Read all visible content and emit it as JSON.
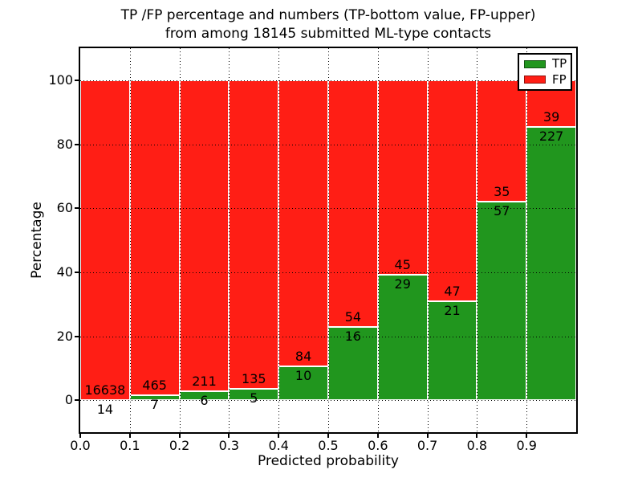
{
  "figure": {
    "title_line1": "TP /FP percentage and numbers (TP-bottom value, FP-upper)",
    "title_line2": "from among 18145 submitted ML-type contacts",
    "xlabel": "Predicted probability",
    "ylabel": "Percentage"
  },
  "legend": {
    "position": "upper right",
    "items": [
      {
        "label": "TP",
        "color": "#21961e"
      },
      {
        "label": "FP",
        "color": "#ff1e15"
      }
    ]
  },
  "chart_data": {
    "type": "bar",
    "stacked": true,
    "normalized": "each bar totals 100%",
    "title": "TP /FP percentage and numbers (TP-bottom value, FP-upper) from among 18145 submitted ML-type contacts",
    "xlabel": "Predicted probability",
    "ylabel": "Percentage",
    "total_contacts": 18145,
    "bin_edges": [
      0.0,
      0.1,
      0.2,
      0.3,
      0.4,
      0.5,
      0.6,
      0.7,
      0.8,
      0.9,
      1.0
    ],
    "series": [
      {
        "name": "TP",
        "color": "#21961e",
        "counts": [
          14,
          7,
          6,
          5,
          10,
          16,
          29,
          21,
          57,
          227
        ]
      },
      {
        "name": "FP",
        "color": "#ff1e15",
        "counts": [
          16638,
          465,
          211,
          135,
          84,
          54,
          45,
          47,
          35,
          39
        ]
      }
    ],
    "tp_percent": [
      0.08,
      1.48,
      2.77,
      3.57,
      10.64,
      22.86,
      39.19,
      30.88,
      61.96,
      85.34
    ],
    "xlim": [
      0.0,
      1.0
    ],
    "ylim": [
      -10,
      110
    ],
    "xtick_labels": [
      "0.0",
      "0.1",
      "0.2",
      "0.3",
      "0.4",
      "0.5",
      "0.6",
      "0.7",
      "0.8",
      "0.9"
    ],
    "ytick_labels": [
      "0",
      "20",
      "40",
      "60",
      "80",
      "100"
    ],
    "grid": "dotted",
    "bar_edge_color": "#ffffff",
    "legend_position": "upper right"
  }
}
